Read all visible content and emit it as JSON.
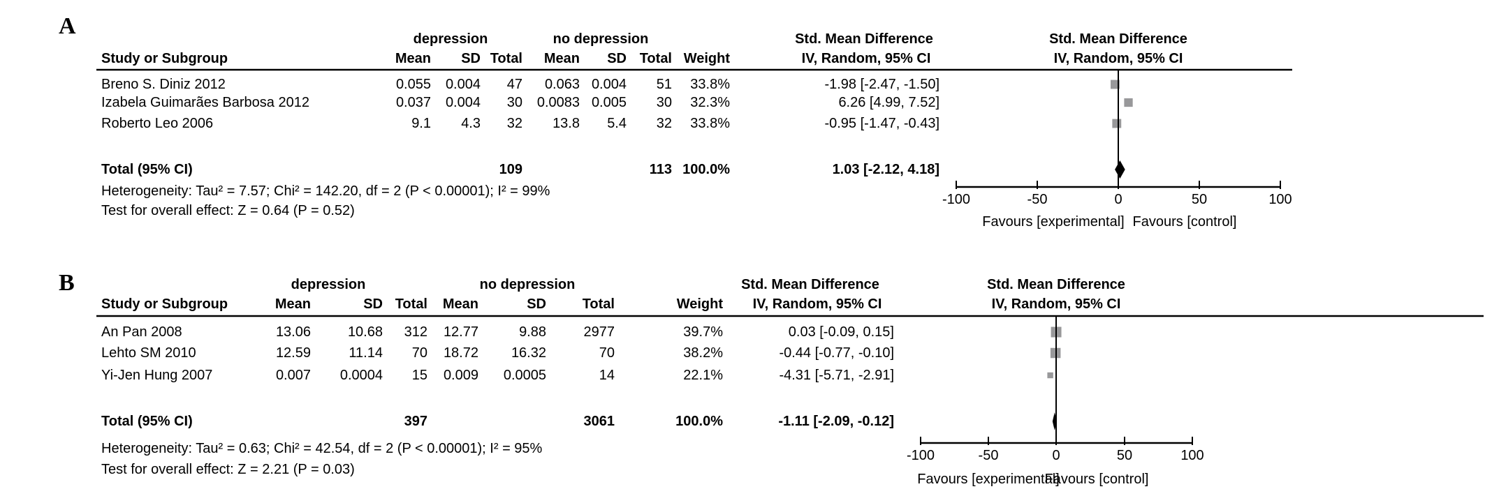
{
  "figure_title": "",
  "colors": {
    "background": "#ffffff",
    "text": "#000000",
    "line": "#000000",
    "square": "#98989a",
    "diamond": "#000000"
  },
  "chart_data": [
    {
      "type": "forest",
      "panel_label": "A",
      "group_labels": {
        "experimental": "depression",
        "control": "no depression"
      },
      "effect_label": "Std. Mean Difference",
      "method_label": "IV, Random, 95% CI",
      "column_headers": {
        "study": "Study or Subgroup",
        "mean": "Mean",
        "sd": "SD",
        "total": "Total",
        "weight": "Weight"
      },
      "studies": [
        {
          "name": "Breno S. Diniz 2012",
          "exp_mean": "0.055",
          "exp_sd": "0.004",
          "exp_total": "47",
          "ctrl_mean": "0.063",
          "ctrl_sd": "0.004",
          "ctrl_total": "51",
          "weight": "33.8%",
          "weight_pct": 33.8,
          "ci_label": "-1.98 [-2.47, -1.50]",
          "smd": -1.98,
          "ci_low": -2.47,
          "ci_high": -1.5
        },
        {
          "name": "Izabela Guimarães Barbosa 2012",
          "exp_mean": "0.037",
          "exp_sd": "0.004",
          "exp_total": "30",
          "ctrl_mean": "0.0083",
          "ctrl_sd": "0.005",
          "ctrl_total": "30",
          "weight": "32.3%",
          "weight_pct": 32.3,
          "ci_label": "6.26 [4.99, 7.52]",
          "smd": 6.26,
          "ci_low": 4.99,
          "ci_high": 7.52
        },
        {
          "name": "Roberto Leo 2006",
          "exp_mean": "9.1",
          "exp_sd": "4.3",
          "exp_total": "32",
          "ctrl_mean": "13.8",
          "ctrl_sd": "5.4",
          "ctrl_total": "32",
          "weight": "33.8%",
          "weight_pct": 33.8,
          "ci_label": "-0.95 [-1.47, -0.43]",
          "smd": -0.95,
          "ci_low": -1.47,
          "ci_high": -0.43
        }
      ],
      "total": {
        "label": "Total (95% CI)",
        "exp_total": "109",
        "ctrl_total": "113",
        "weight": "100.0%",
        "ci_label": "1.03 [-2.12, 4.18]",
        "smd": 1.03,
        "ci_low": -2.12,
        "ci_high": 4.18
      },
      "heterogeneity": "Heterogeneity: Tau² = 7.57; Chi² = 142.20, df = 2 (P < 0.00001); I² = 99%",
      "overall_effect": "Test for overall effect: Z = 0.64 (P = 0.52)",
      "axis": {
        "min": -100,
        "max": 100,
        "ticks": [
          -100,
          -50,
          0,
          50,
          100
        ],
        "favours_left": "Favours [experimental]",
        "favours_right": "Favours [control]"
      }
    },
    {
      "type": "forest",
      "panel_label": "B",
      "group_labels": {
        "experimental": "depression",
        "control": "no depression"
      },
      "effect_label": "Std. Mean Difference",
      "method_label": "IV, Random, 95% CI",
      "column_headers": {
        "study": "Study or Subgroup",
        "mean": "Mean",
        "sd": "SD",
        "total": "Total",
        "weight": "Weight"
      },
      "studies": [
        {
          "name": "An Pan 2008",
          "exp_mean": "13.06",
          "exp_sd": "10.68",
          "exp_total": "312",
          "ctrl_mean": "12.77",
          "ctrl_sd": "9.88",
          "ctrl_total": "2977",
          "weight": "39.7%",
          "weight_pct": 39.7,
          "ci_label": "0.03 [-0.09, 0.15]",
          "smd": 0.03,
          "ci_low": -0.09,
          "ci_high": 0.15
        },
        {
          "name": "Lehto SM 2010",
          "exp_mean": "12.59",
          "exp_sd": "11.14",
          "exp_total": "70",
          "ctrl_mean": "18.72",
          "ctrl_sd": "16.32",
          "ctrl_total": "70",
          "weight": "38.2%",
          "weight_pct": 38.2,
          "ci_label": "-0.44 [-0.77, -0.10]",
          "smd": -0.44,
          "ci_low": -0.77,
          "ci_high": -0.1
        },
        {
          "name": "Yi-Jen Hung 2007",
          "exp_mean": "0.007",
          "exp_sd": "0.0004",
          "exp_total": "15",
          "ctrl_mean": "0.009",
          "ctrl_sd": "0.0005",
          "ctrl_total": "14",
          "weight": "22.1%",
          "weight_pct": 22.1,
          "ci_label": "-4.31 [-5.71, -2.91]",
          "smd": -4.31,
          "ci_low": -5.71,
          "ci_high": -2.91
        }
      ],
      "total": {
        "label": "Total (95% CI)",
        "exp_total": "397",
        "ctrl_total": "3061",
        "weight": "100.0%",
        "ci_label": "-1.11 [-2.09, -0.12]",
        "smd": -1.11,
        "ci_low": -2.09,
        "ci_high": -0.12
      },
      "heterogeneity": "Heterogeneity: Tau² = 0.63; Chi² = 42.54, df = 2 (P < 0.00001); I² = 95%",
      "overall_effect": "Test for overall effect: Z = 2.21 (P = 0.03)",
      "axis": {
        "min": -100,
        "max": 100,
        "ticks": [
          -100,
          -50,
          0,
          50,
          100
        ],
        "favours_left": "Favours [experimental]",
        "favours_right": "Favours [control]"
      }
    }
  ]
}
